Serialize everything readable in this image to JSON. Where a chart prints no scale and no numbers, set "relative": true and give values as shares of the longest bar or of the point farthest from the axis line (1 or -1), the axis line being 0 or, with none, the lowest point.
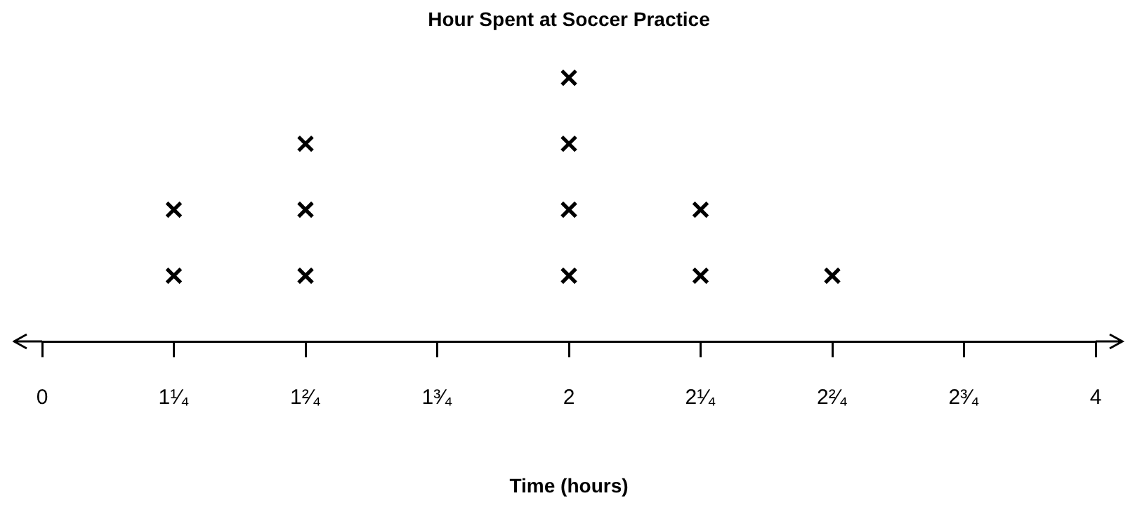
{
  "chart_data": {
    "type": "scatter",
    "title": "Hour Spent at Soccer Practice",
    "xlabel": "Time (hours)",
    "relative": true,
    "marker": "cross",
    "legend": false,
    "categories": [
      "0",
      "1¹⁄₄",
      "1²⁄₄",
      "1³⁄₄",
      "2",
      "2¹⁄₄",
      "2²⁄₄",
      "2³⁄₄",
      "4"
    ],
    "series": [
      {
        "color": "#000000",
        "x": [
          "1¹⁄₄",
          "1¹⁄₄",
          "1²⁄₄",
          "1²⁄₄",
          "1²⁄₄",
          "2",
          "2",
          "2",
          "2",
          "2¹⁄₄",
          "2¹⁄₄",
          "2²⁄₄"
        ],
        "values": [
          0.25,
          0.5,
          0.25,
          0.5,
          0.75,
          0.25,
          0.5,
          0.75,
          1,
          0.25,
          0.5,
          0.25
        ]
      }
    ]
  }
}
